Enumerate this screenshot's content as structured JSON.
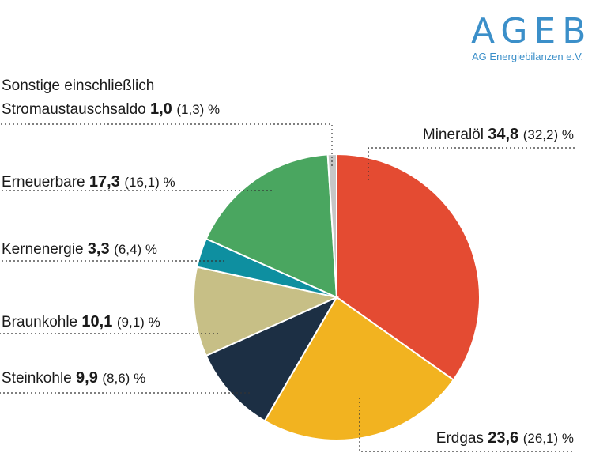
{
  "logo": {
    "name": "AGEB",
    "subtitle": "AG Energiebilanzen e.V.",
    "color": "#3b8fc9"
  },
  "chart_data": {
    "type": "pie",
    "unit": "%",
    "slices": [
      {
        "label": "Mineralöl",
        "value": 34.8,
        "value_text": "34,8",
        "prev_text": "(32,2)",
        "color": "#e44b32"
      },
      {
        "label": "Erdgas",
        "value": 23.6,
        "value_text": "23,6",
        "prev_text": "(26,1)",
        "color": "#f2b320"
      },
      {
        "label": "Steinkohle",
        "value": 9.9,
        "value_text": "9,9",
        "prev_text": "(8,6)",
        "color": "#1c2f44"
      },
      {
        "label": "Braunkohle",
        "value": 10.1,
        "value_text": "10,1",
        "prev_text": "(9,1)",
        "color": "#c7bf86"
      },
      {
        "label": "Kernenergie",
        "value": 3.3,
        "value_text": "3,3",
        "prev_text": "(6,4)",
        "color": "#0e8fa0"
      },
      {
        "label": "Erneuerbare",
        "value": 17.3,
        "value_text": "17,3",
        "prev_text": "(16,1)",
        "color": "#4aa660"
      },
      {
        "label_lines": [
          "Sonstige einschließlich",
          "Stromaustauschsaldo"
        ],
        "value": 1.0,
        "value_text": "1,0",
        "prev_text": "(1,3)",
        "color": "#c6c6c6"
      }
    ]
  }
}
